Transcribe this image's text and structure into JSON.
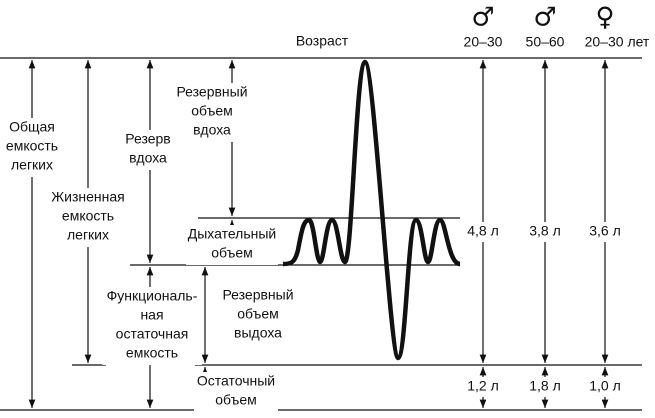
{
  "header": {
    "title": "Возраст"
  },
  "columns": [
    {
      "symbol": "♂",
      "age": "20–30",
      "vital": "4,8 л",
      "residual": "1,2 л"
    },
    {
      "symbol": "♂",
      "age": "50–60",
      "vital": "3,8 л",
      "residual": "1,8 л"
    },
    {
      "symbol": "♀",
      "age": "20–30 лет",
      "vital": "3,6 л",
      "residual": "1,0 л"
    }
  ],
  "labels": {
    "total_capacity": [
      "Общая",
      "емкость",
      "легких"
    ],
    "vital_capacity": [
      "Жизненная",
      "емкость",
      "легких"
    ],
    "inspiratory_reserve": [
      "Резерв",
      "вдоха"
    ],
    "inspiratory_reserve_volume": [
      "Резервный",
      "объем",
      "вдоха"
    ],
    "tidal_volume": [
      "Дыхательный",
      "объем"
    ],
    "functional_residual": [
      "Функциональ-",
      "ная",
      "остаточная",
      "емкость"
    ],
    "expiratory_reserve_volume": [
      "Резервный",
      "объем",
      "выдоха"
    ],
    "residual_volume": [
      "Остаточный",
      "объем"
    ]
  }
}
